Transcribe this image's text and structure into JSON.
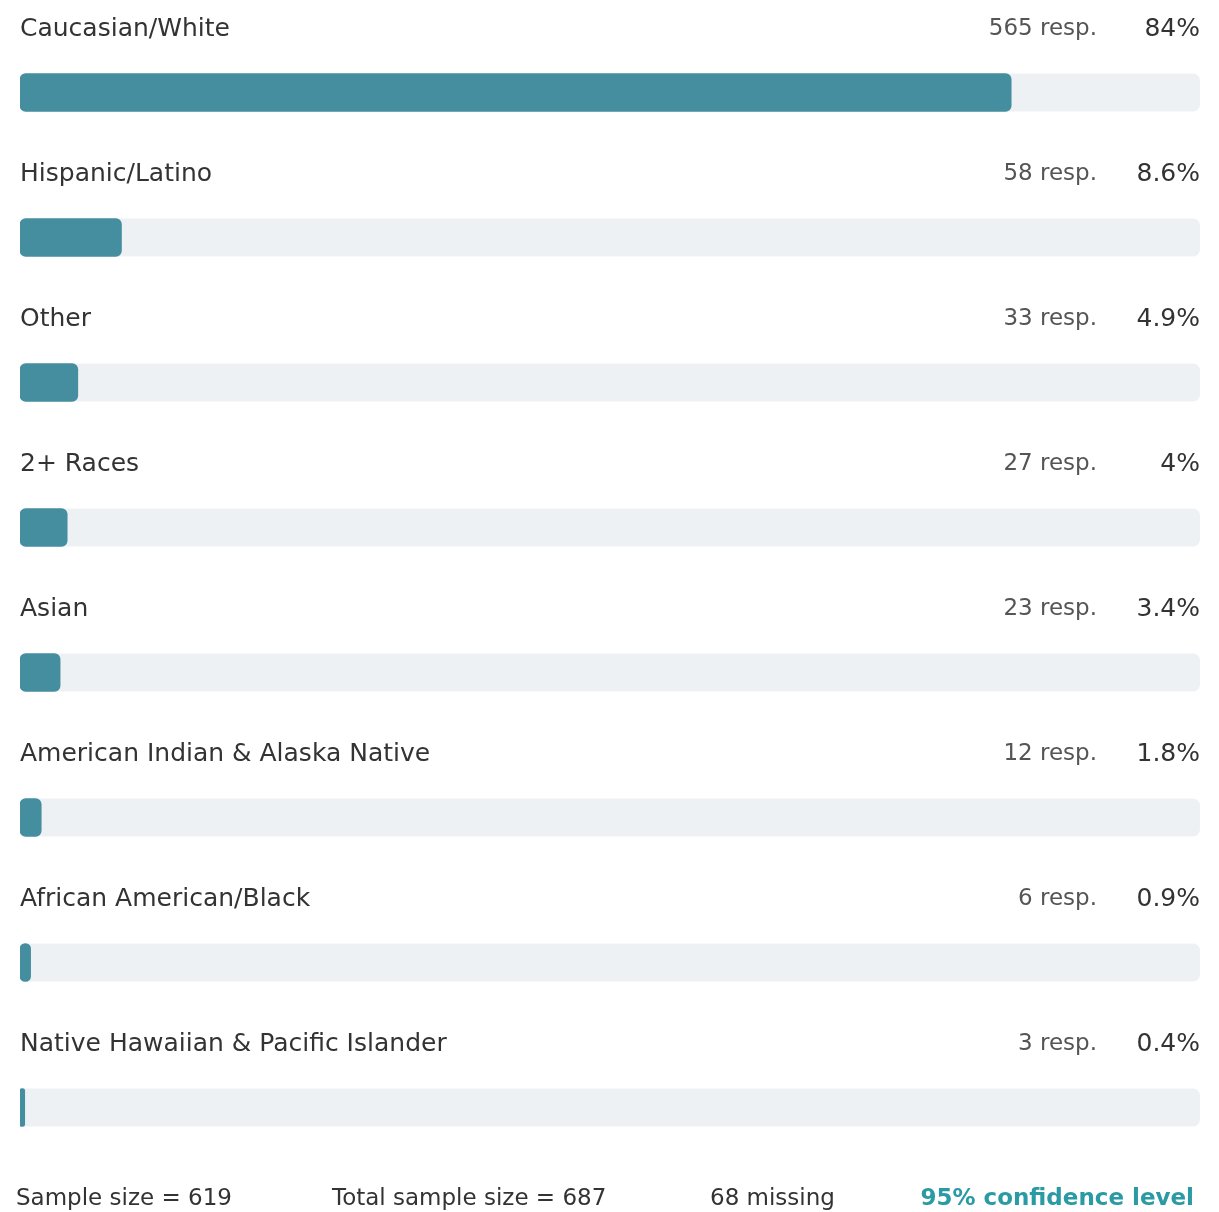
{
  "chart_data": {
    "type": "bar",
    "orientation": "horizontal",
    "tick_labels": "y",
    "categories": [
      "Caucasian/White",
      "Hispanic/Latino",
      "Other",
      "2+ Races",
      "Asian",
      "American Indian & Alaska Native",
      "African American/Black",
      "Native Hawaiian & Pacific Islander"
    ],
    "values": [
      84,
      8.6,
      4.9,
      4,
      3.4,
      1.8,
      0.9,
      0.4
    ],
    "value_labels": [
      "84%",
      "8.6%",
      "4.9%",
      "4%",
      "3.4%",
      "1.8%",
      "0.9%",
      "0.4%"
    ],
    "color": "#458ea0",
    "xlim": [
      0,
      100
    ],
    "annotations": [
      "565 resp.",
      "58 resp.",
      "33 resp.",
      "27 resp.",
      "23 resp.",
      "12 resp.",
      "6 resp.",
      "3 resp.",
      "Sample size = 619",
      "Total sample size = 687",
      "68 missing",
      "95% confidence level"
    ]
  }
}
